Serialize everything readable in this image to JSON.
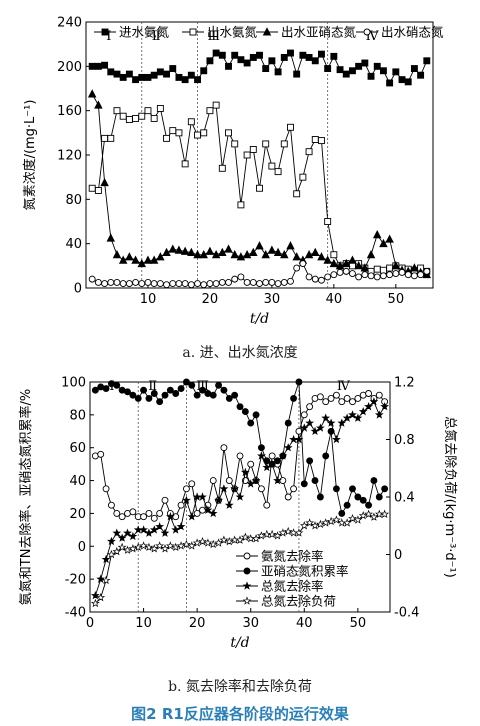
{
  "figure_title": "图2  R1反应器各阶段的运行效果",
  "colors": {
    "axis": "#000000",
    "title": "#2a7fb8"
  },
  "chart_data": [
    {
      "type": "line",
      "caption": "a. 进、出水氮浓度",
      "xlabel": "t/d",
      "ylabel": "氮素浓度/(mg·L⁻¹)",
      "xlim": [
        0,
        56
      ],
      "ylim": [
        0,
        240
      ],
      "xticks": [
        10,
        20,
        30,
        40,
        50
      ],
      "yticks": [
        0,
        40,
        80,
        120,
        160,
        200,
        240
      ],
      "legend_position": "top",
      "phases": {
        "labels": [
          "Ⅰ",
          "Ⅱ",
          "Ⅲ",
          "Ⅳ"
        ],
        "boundaries": [
          9,
          18,
          39
        ]
      },
      "x": [
        1,
        2,
        3,
        4,
        5,
        6,
        7,
        8,
        9,
        10,
        11,
        12,
        13,
        14,
        15,
        16,
        17,
        18,
        19,
        20,
        21,
        22,
        23,
        24,
        25,
        26,
        27,
        28,
        29,
        30,
        31,
        32,
        33,
        34,
        35,
        36,
        37,
        38,
        39,
        40,
        41,
        42,
        43,
        44,
        45,
        46,
        47,
        48,
        49,
        50,
        51,
        52,
        53,
        54,
        55
      ],
      "series": [
        {
          "name": "进水氨氮",
          "marker": "filled-square",
          "values": [
            200,
            200,
            201,
            195,
            193,
            190,
            193,
            188,
            190,
            190,
            192,
            195,
            193,
            198,
            190,
            188,
            192,
            188,
            196,
            205,
            212,
            210,
            200,
            210,
            206,
            203,
            208,
            210,
            198,
            205,
            195,
            208,
            212,
            193,
            210,
            208,
            205,
            211,
            198,
            209,
            197,
            193,
            196,
            200,
            203,
            191,
            200,
            196,
            185,
            195,
            188,
            186,
            198,
            192,
            205
          ]
        },
        {
          "name": "出水氨氮",
          "marker": "open-square",
          "values": [
            90,
            88,
            135,
            135,
            160,
            155,
            152,
            153,
            155,
            160,
            153,
            162,
            135,
            142,
            140,
            112,
            150,
            138,
            140,
            160,
            165,
            108,
            140,
            130,
            75,
            120,
            125,
            90,
            130,
            110,
            105,
            130,
            145,
            85,
            100,
            123,
            134,
            133,
            60,
            30,
            20,
            22,
            20,
            22,
            18,
            15,
            17,
            16,
            18,
            20,
            18,
            17,
            16,
            18,
            15
          ]
        },
        {
          "name": "出水亚硝态氮",
          "marker": "filled-triangle",
          "values": [
            175,
            165,
            95,
            45,
            30,
            25,
            28,
            25,
            22,
            25,
            25,
            28,
            32,
            35,
            34,
            33,
            32,
            30,
            30,
            33,
            30,
            32,
            35,
            30,
            28,
            30,
            32,
            38,
            30,
            34,
            32,
            30,
            38,
            28,
            25,
            30,
            32,
            28,
            25,
            22,
            20,
            22,
            25,
            20,
            18,
            30,
            48,
            40,
            44,
            20,
            16,
            15,
            18,
            14,
            12
          ]
        },
        {
          "name": "出水硝态氮",
          "marker": "open-circle",
          "values": [
            8,
            5,
            4,
            5,
            5,
            4,
            4,
            5,
            4,
            5,
            4,
            4,
            3,
            4,
            4,
            4,
            3,
            4,
            3,
            4,
            4,
            5,
            5,
            8,
            10,
            5,
            5,
            4,
            5,
            5,
            4,
            5,
            6,
            18,
            22,
            10,
            8,
            7,
            10,
            12,
            14,
            15,
            13,
            10,
            12,
            11,
            10,
            11,
            12,
            13,
            14,
            12,
            11,
            12,
            15
          ]
        }
      ]
    },
    {
      "type": "line",
      "caption": "b. 氮去除率和去除负荷",
      "xlabel": "t/d",
      "ylabel": "氨氮和TN去除率、亚硝态氮积累率/%",
      "y2label": "总氮去除负荷/(kg·m⁻³·d⁻¹)",
      "xlim": [
        0,
        56
      ],
      "ylim": [
        -40,
        100
      ],
      "y2lim": [
        -0.4,
        1.2
      ],
      "xticks": [
        0,
        10,
        20,
        30,
        40,
        50
      ],
      "yticks": [
        -40,
        -20,
        0,
        20,
        40,
        60,
        80,
        100
      ],
      "y2ticks": [
        -0.4,
        0,
        0.4,
        0.8,
        1.2
      ],
      "legend_position": "bottom-right",
      "phases": {
        "labels": [
          "Ⅰ",
          "Ⅱ",
          "Ⅲ",
          "Ⅳ"
        ],
        "boundaries": [
          9,
          18,
          39
        ]
      },
      "x": [
        1,
        2,
        3,
        4,
        5,
        6,
        7,
        8,
        9,
        10,
        11,
        12,
        13,
        14,
        15,
        16,
        17,
        18,
        19,
        20,
        21,
        22,
        23,
        24,
        25,
        26,
        27,
        28,
        29,
        30,
        31,
        32,
        33,
        34,
        35,
        36,
        37,
        38,
        39,
        40,
        41,
        42,
        43,
        44,
        45,
        46,
        47,
        48,
        49,
        50,
        51,
        52,
        53,
        54,
        55
      ],
      "series": [
        {
          "name": "氨氮去除率",
          "marker": "open-circle",
          "axis": "left",
          "values": [
            55,
            56,
            35,
            25,
            20,
            18,
            20,
            21,
            18,
            18,
            20,
            17,
            20,
            28,
            20,
            18,
            25,
            35,
            38,
            20,
            22,
            25,
            40,
            28,
            60,
            40,
            35,
            55,
            40,
            50,
            40,
            35,
            25,
            55,
            50,
            40,
            30,
            35,
            70,
            80,
            85,
            90,
            91,
            88,
            90,
            92,
            88,
            90,
            88,
            90,
            92,
            93,
            90,
            92,
            88
          ]
        },
        {
          "name": "亚硝态氮积累率",
          "marker": "filled-circle",
          "axis": "left",
          "values": [
            95,
            97,
            96,
            99,
            98,
            95,
            94,
            92,
            90,
            95,
            90,
            93,
            88,
            92,
            95,
            93,
            96,
            100,
            98,
            92,
            95,
            93,
            92,
            98,
            95,
            90,
            92,
            85,
            82,
            75,
            80,
            60,
            52,
            50,
            52,
            55,
            75,
            90,
            100,
            38,
            52,
            40,
            30,
            55,
            70,
            35,
            20,
            25,
            35,
            30,
            28,
            25,
            40,
            30,
            35
          ]
        },
        {
          "name": "总氮去除率",
          "marker": "filled-star",
          "axis": "left",
          "values": [
            -30,
            -20,
            -8,
            3,
            8,
            5,
            8,
            6,
            10,
            10,
            8,
            10,
            12,
            8,
            18,
            10,
            12,
            28,
            18,
            30,
            30,
            22,
            20,
            28,
            35,
            25,
            35,
            30,
            45,
            38,
            40,
            55,
            48,
            50,
            40,
            55,
            60,
            65,
            65,
            72,
            75,
            70,
            72,
            78,
            75,
            65,
            75,
            78,
            80,
            78,
            82,
            85,
            88,
            80,
            85
          ]
        },
        {
          "name": "总氮去除负荷",
          "marker": "open-star",
          "axis": "right",
          "values": [
            -0.34,
            -0.3,
            -0.18,
            0,
            0.02,
            0.05,
            0.03,
            0.04,
            0.05,
            0.06,
            0.05,
            0.04,
            0.06,
            0.04,
            0.06,
            0.05,
            0.06,
            0.07,
            0.06,
            0.08,
            0.09,
            0.08,
            0.07,
            0.08,
            0.1,
            0.09,
            0.1,
            0.1,
            0.12,
            0.11,
            0.11,
            0.13,
            0.14,
            0.14,
            0.13,
            0.15,
            0.16,
            0.15,
            0.15,
            0.2,
            0.22,
            0.2,
            0.21,
            0.22,
            0.23,
            0.24,
            0.22,
            0.22,
            0.25,
            0.24,
            0.27,
            0.28,
            0.26,
            0.28,
            0.28
          ]
        }
      ]
    }
  ]
}
